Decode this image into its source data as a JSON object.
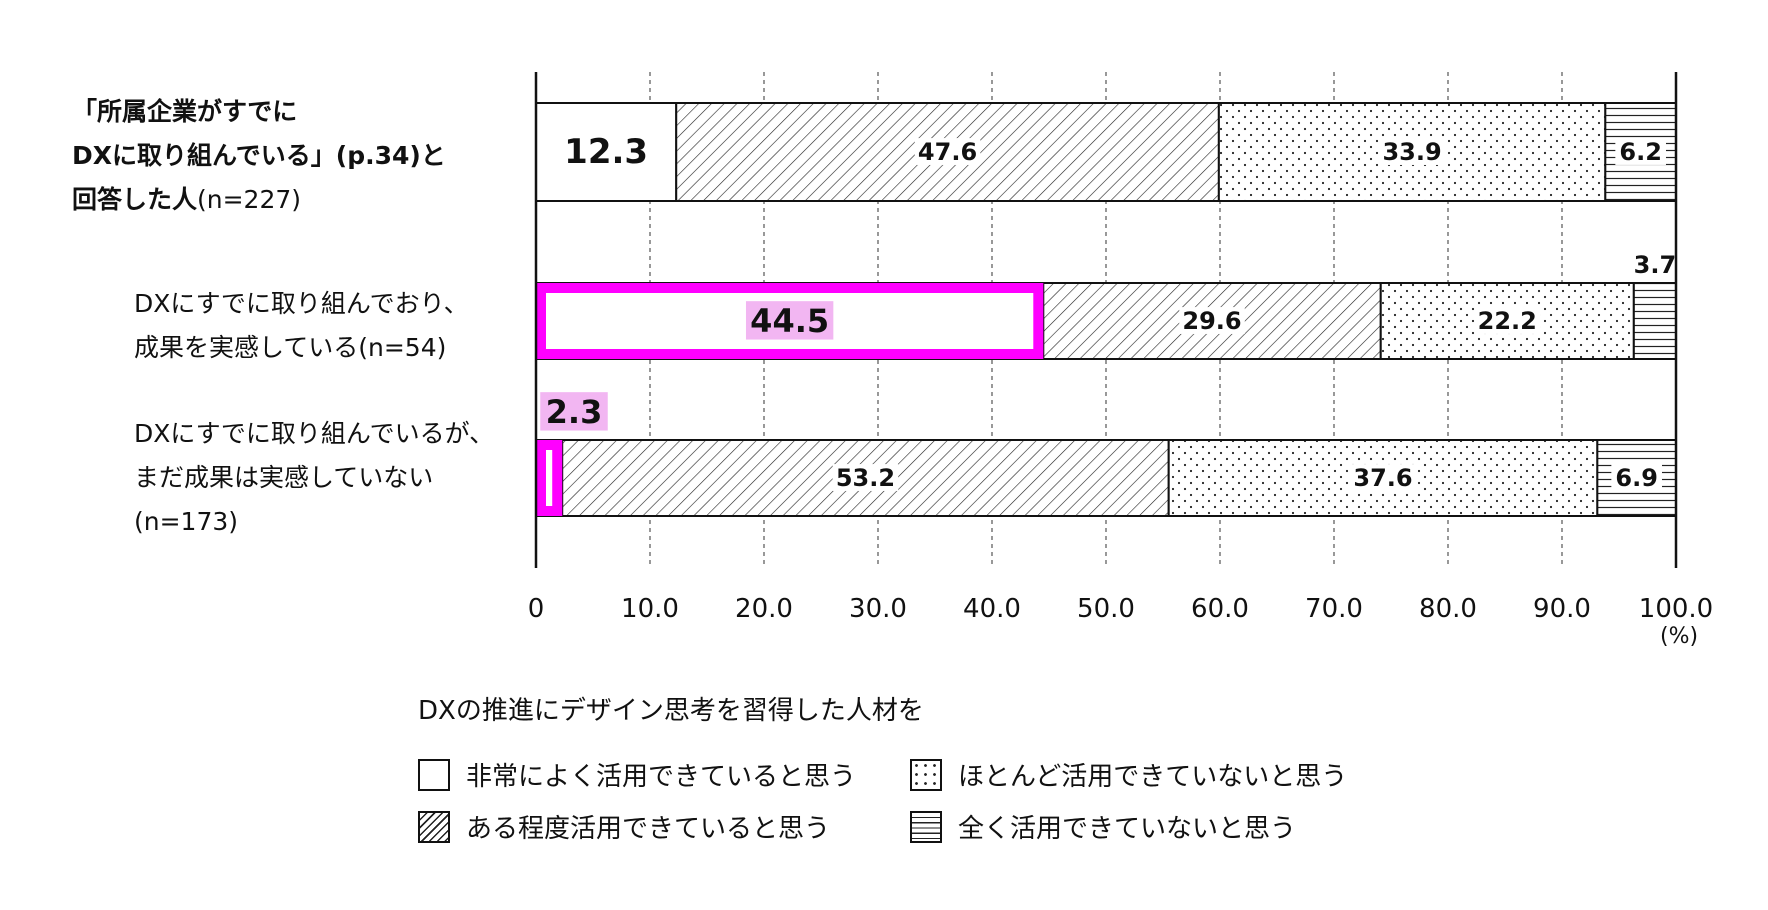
{
  "chart_data": {
    "type": "bar",
    "orientation": "horizontal",
    "stacked": true,
    "xlim": [
      0,
      100
    ],
    "xticks": [
      "0",
      "10.0",
      "20.0",
      "30.0",
      "40.0",
      "50.0",
      "60.0",
      "70.0",
      "80.0",
      "90.0",
      "100.0"
    ],
    "unit": "(%)",
    "grid": "vertical dashed",
    "categories": [
      {
        "lines": [
          "「所属企業がすでに",
          "DXに取り組んでいる」(p.34)と",
          "回答した人"
        ],
        "note": "(n=227)",
        "bold": true
      },
      {
        "lines": [
          "DXにすでに取り組んでおり、",
          "成果を実感している(n=54)"
        ],
        "bold": false
      },
      {
        "lines": [
          "DXにすでに取り組んでいるが、",
          "まだ成果は実感していない",
          "(n=173)"
        ],
        "bold": false
      }
    ],
    "series": [
      {
        "name": "非常によく活用できていると思う",
        "pattern": "blank",
        "values": [
          12.3,
          44.5,
          2.3
        ]
      },
      {
        "name": "ある程度活用できていると思う",
        "pattern": "diagonal",
        "values": [
          47.6,
          29.6,
          53.2
        ]
      },
      {
        "name": "ほとんど活用できていないと思う",
        "pattern": "dots",
        "values": [
          33.9,
          22.2,
          37.6
        ]
      },
      {
        "name": "全く活用できていないと思う",
        "pattern": "horizontal",
        "values": [
          6.2,
          3.7,
          6.9
        ]
      }
    ],
    "highlight": {
      "series": 0,
      "rows": [
        1,
        2
      ],
      "color": "#ff00ff",
      "label_bg": "#f2b6f2"
    },
    "legend_title": "DXの推進にデザイン思考を習得した人材を",
    "legend_position": "bottom"
  }
}
